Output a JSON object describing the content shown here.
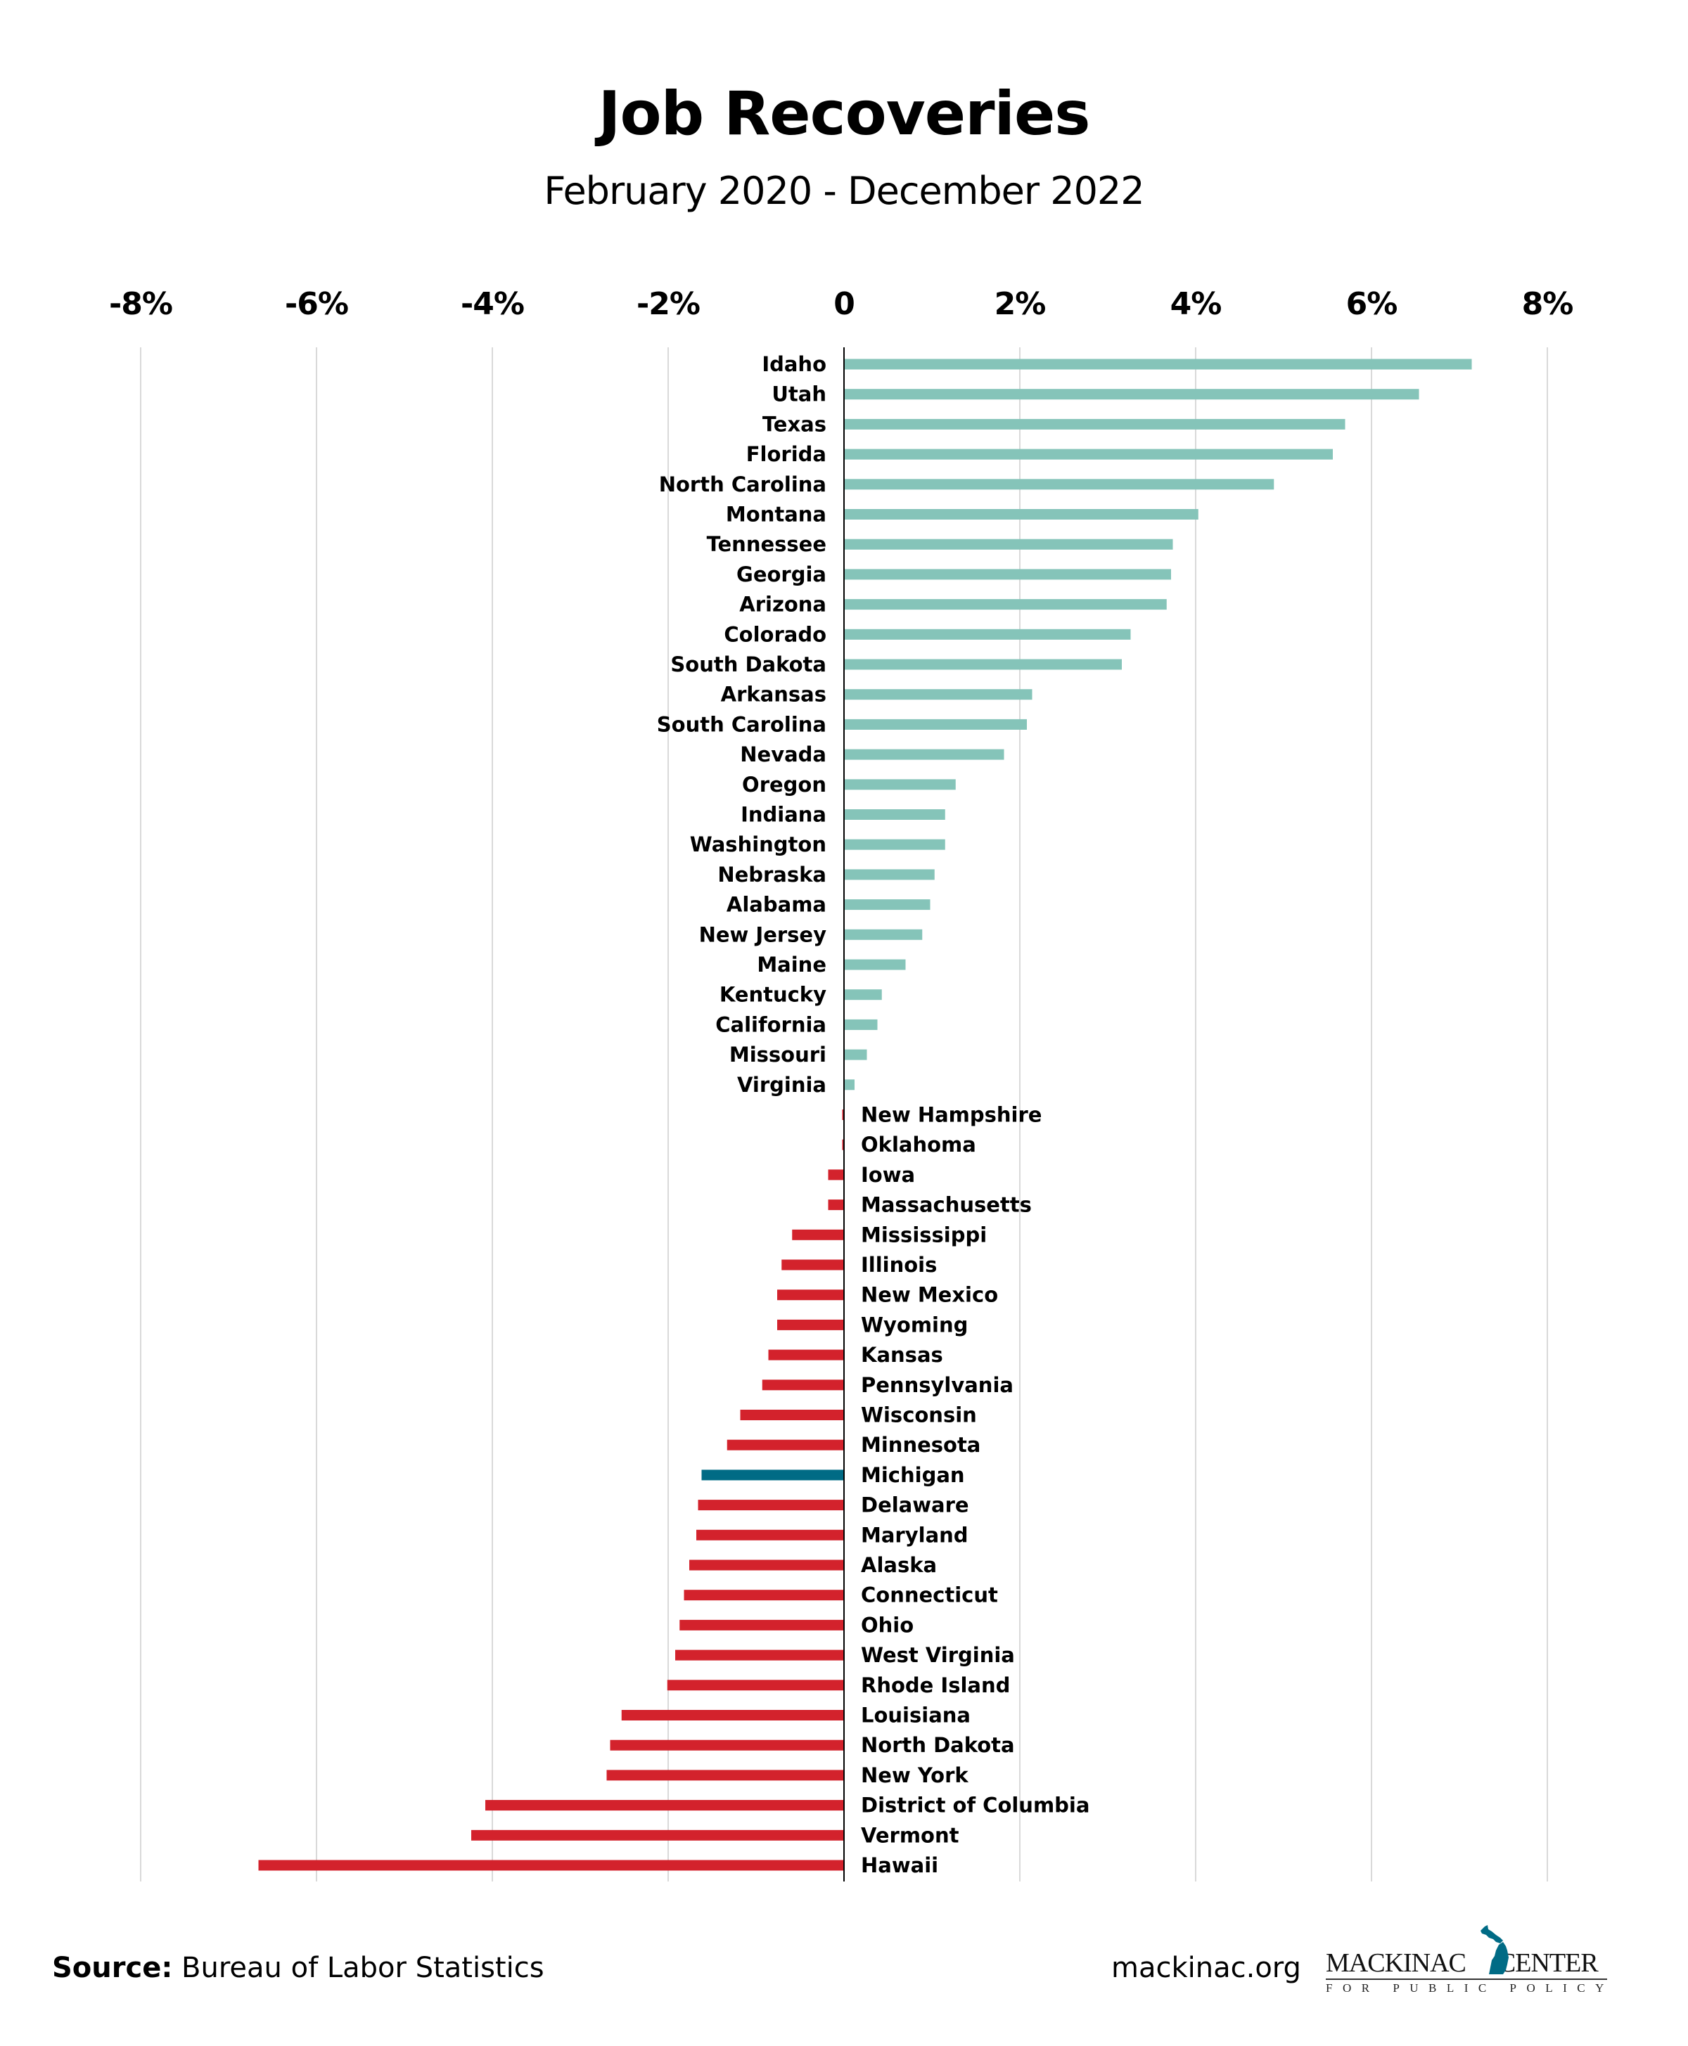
{
  "header": {
    "title": "Job Recoveries",
    "subtitle": "February 2020 - December 2022"
  },
  "footer": {
    "source_label": "Source:",
    "source_text": "Bureau of Labor Statistics",
    "url": "mackinac.org",
    "logo_name_left": "MACKINAC",
    "logo_name_right": "CENTER",
    "logo_tagline": "FOR PUBLIC POLICY",
    "logo_icon": "michigan-map-icon"
  },
  "colors": {
    "positive": "#85c4b9",
    "negative": "#d3222c",
    "highlight": "#006b85",
    "gridline": "#d9d9d9",
    "axis": "#000000"
  },
  "chart_data": {
    "type": "bar",
    "orientation": "horizontal",
    "title": "Job Recoveries",
    "subtitle": "February 2020 - December 2022",
    "xlabel": "",
    "ylabel": "",
    "xlim": [
      -8,
      8
    ],
    "x_unit": "%",
    "x_ticks": [
      -8,
      -6,
      -4,
      -2,
      0,
      2,
      4,
      6,
      8
    ],
    "x_tick_labels": [
      "-8%",
      "-6%",
      "-4%",
      "-2%",
      "0",
      "2%",
      "4%",
      "6%",
      "8%"
    ],
    "x_axis_position": "top",
    "grid": true,
    "highlight": "Michigan",
    "categories": [
      "Idaho",
      "Utah",
      "Texas",
      "Florida",
      "North Carolina",
      "Montana",
      "Tennessee",
      "Georgia",
      "Arizona",
      "Colorado",
      "South Dakota",
      "Arkansas",
      "South Carolina",
      "Nevada",
      "Oregon",
      "Indiana",
      "Washington",
      "Nebraska",
      "Alabama",
      "New Jersey",
      "Maine",
      "Kentucky",
      "California",
      "Missouri",
      "Virginia",
      "New Hampshire",
      "Oklahoma",
      "Iowa",
      "Massachusetts",
      "Mississippi",
      "Illinois",
      "New Mexico",
      "Wyoming",
      "Kansas",
      "Pennsylvania",
      "Wisconsin",
      "Minnesota",
      "Michigan",
      "Delaware",
      "Maryland",
      "Alaska",
      "Connecticut",
      "Ohio",
      "West Virginia",
      "Rhode Island",
      "Louisiana",
      "North Dakota",
      "New York",
      "District of Columbia",
      "Vermont",
      "Hawaii"
    ],
    "values": [
      7.14,
      6.54,
      5.7,
      5.56,
      4.89,
      4.03,
      3.74,
      3.72,
      3.67,
      3.26,
      3.16,
      2.14,
      2.08,
      1.82,
      1.27,
      1.15,
      1.15,
      1.03,
      0.98,
      0.89,
      0.7,
      0.43,
      0.38,
      0.26,
      0.12,
      -0.02,
      -0.02,
      -0.18,
      -0.18,
      -0.59,
      -0.71,
      -0.76,
      -0.76,
      -0.86,
      -0.93,
      -1.18,
      -1.33,
      -1.62,
      -1.66,
      -1.68,
      -1.76,
      -1.82,
      -1.87,
      -1.92,
      -2.01,
      -2.53,
      -2.66,
      -2.7,
      -4.08,
      -4.24,
      -6.66
    ]
  }
}
